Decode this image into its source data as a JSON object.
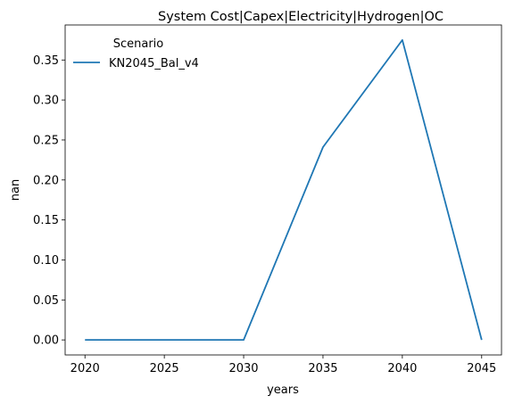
{
  "chart_data": {
    "type": "line",
    "title": "System Cost|Capex|Electricity|Hydrogen|OC",
    "xlabel": "years",
    "ylabel": "nan",
    "x": [
      2020,
      2025,
      2030,
      2035,
      2040,
      2045
    ],
    "xlim": [
      2018.75,
      2046.25
    ],
    "ylim": [
      -0.0188,
      0.3938
    ],
    "xticks": [
      2020,
      2025,
      2030,
      2035,
      2040,
      2045
    ],
    "yticks": [
      0.0,
      0.05,
      0.1,
      0.15,
      0.2,
      0.25,
      0.3,
      0.35
    ],
    "ytick_labels": [
      "0.00",
      "0.05",
      "0.10",
      "0.15",
      "0.20",
      "0.25",
      "0.30",
      "0.35"
    ],
    "grid": false,
    "legend": {
      "title": "Scenario",
      "placement": "upper-left"
    },
    "series": [
      {
        "name": "KN2045_Bal_v4",
        "color": "#1f77b4",
        "x": [
          2020,
          2030,
          2035,
          2040,
          2045
        ],
        "values": [
          0.0,
          0.0,
          0.241,
          0.375,
          0.0
        ]
      }
    ]
  }
}
